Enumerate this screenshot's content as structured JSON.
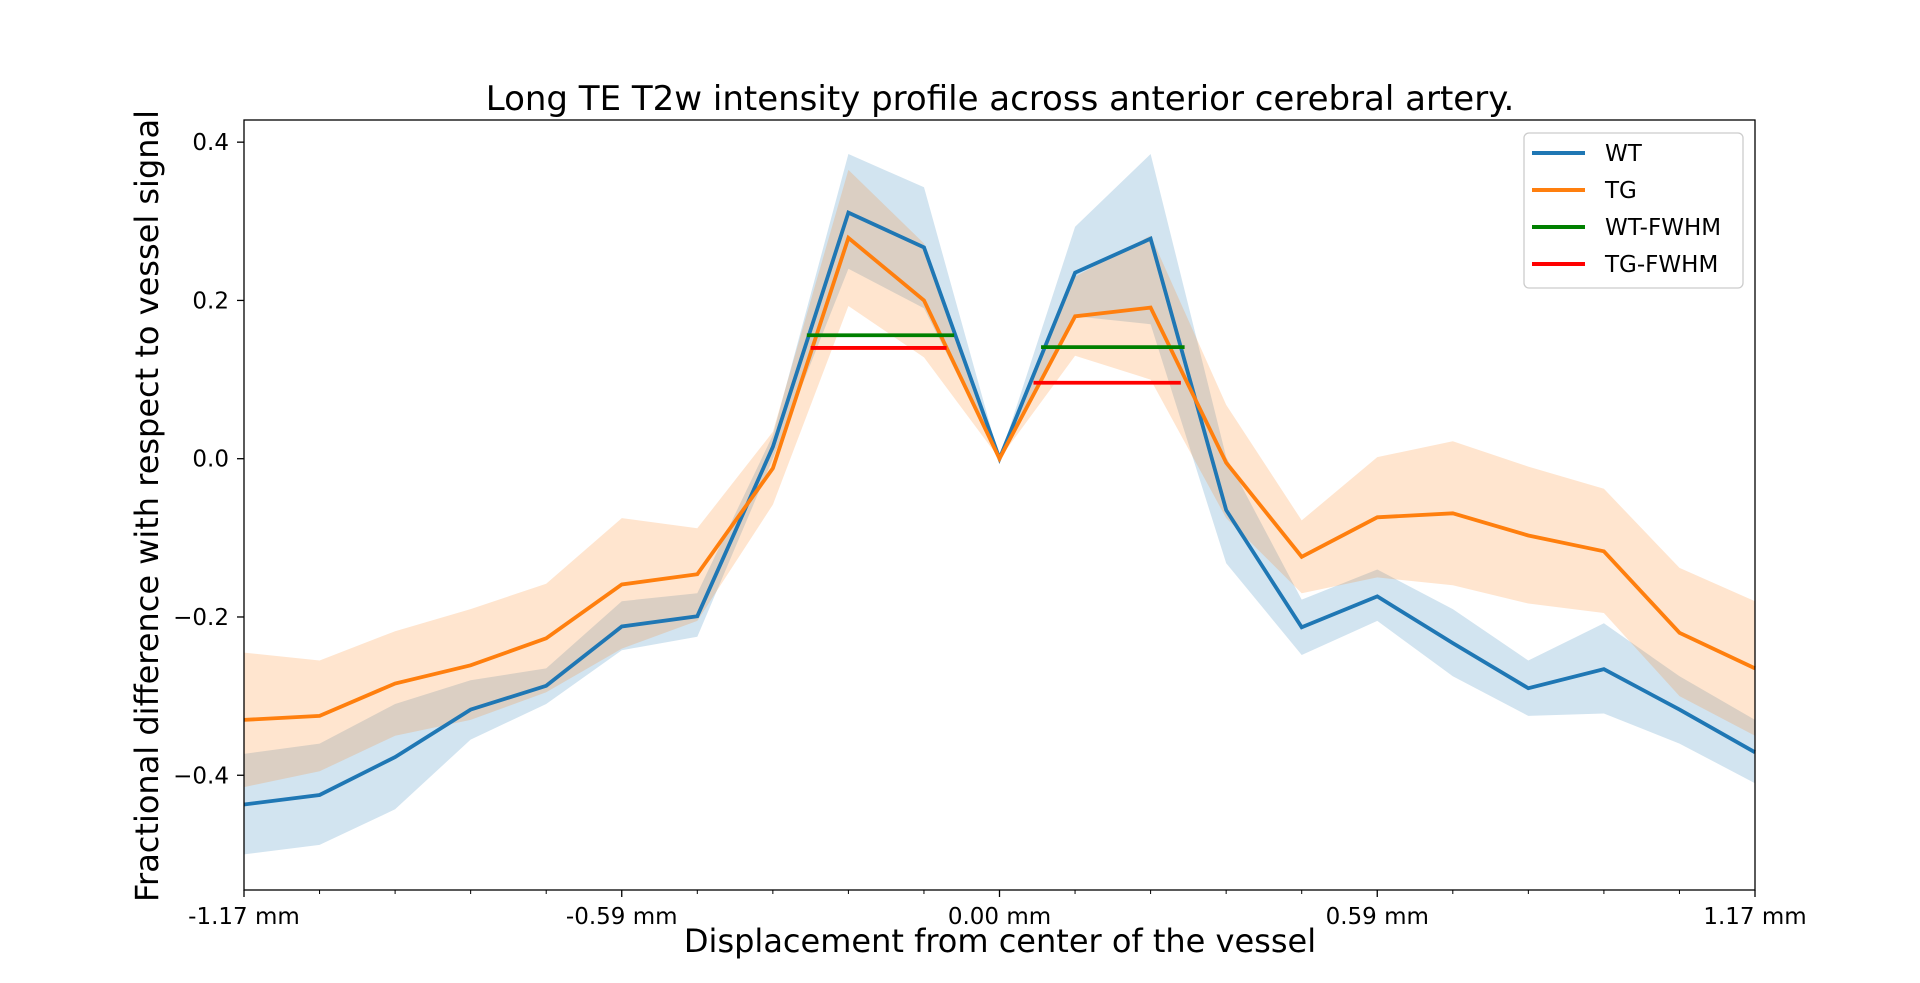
{
  "chart_data": {
    "type": "line",
    "title": "Long TE T2w intensity profile across anterior cerebral artery.",
    "xlabel": "Displacement from center of the vessel",
    "ylabel": "Fractional difference with respect to vessel signal",
    "x": [
      -20,
      -19,
      -18,
      -17,
      -16,
      -15,
      -14,
      -13,
      -12,
      -11,
      -10,
      -9,
      -8,
      -7,
      -6,
      -5,
      -4,
      -3,
      -2,
      -1,
      0
    ],
    "xlim": [
      -20,
      0
    ],
    "ylim": [
      -0.545,
      0.428
    ],
    "x_ticks": [
      {
        "value": -20,
        "label": "-1.17 mm"
      },
      {
        "value": -15,
        "label": "-0.59 mm"
      },
      {
        "value": -10,
        "label": "0.00 mm"
      },
      {
        "value": -5,
        "label": "0.59 mm"
      },
      {
        "value": 0,
        "label": "1.17 mm"
      }
    ],
    "x_minor_ticks": [
      -19,
      -18,
      -17,
      -16,
      -14,
      -13,
      -12,
      -11,
      -9,
      -8,
      -7,
      -6,
      -4,
      -3,
      -2,
      -1
    ],
    "y_ticks": [
      {
        "value": 0.4,
        "label": "0.4"
      },
      {
        "value": 0.2,
        "label": "0.2"
      },
      {
        "value": 0.0,
        "label": "0.0"
      },
      {
        "value": -0.2,
        "label": "−0.2"
      },
      {
        "value": -0.4,
        "label": "−0.4"
      }
    ],
    "grid": false,
    "legend_position": "top-right",
    "series": [
      {
        "name": "WT",
        "color": "#1f77b4",
        "values": [
          -0.437,
          -0.425,
          -0.377,
          -0.317,
          -0.287,
          -0.212,
          -0.199,
          0.015,
          0.311,
          0.267,
          0.0,
          0.235,
          0.278,
          -0.065,
          -0.213,
          -0.174,
          -0.233,
          -0.29,
          -0.266,
          -0.317,
          -0.371
        ],
        "lower": [
          -0.5,
          -0.488,
          -0.443,
          -0.355,
          -0.31,
          -0.242,
          -0.225,
          0.0,
          0.24,
          0.19,
          0.0,
          0.18,
          0.17,
          -0.132,
          -0.248,
          -0.205,
          -0.275,
          -0.325,
          -0.322,
          -0.36,
          -0.41
        ],
        "upper": [
          -0.373,
          -0.36,
          -0.31,
          -0.28,
          -0.265,
          -0.18,
          -0.17,
          0.03,
          0.385,
          0.343,
          0.0,
          0.293,
          0.385,
          0.002,
          -0.178,
          -0.14,
          -0.19,
          -0.255,
          -0.208,
          -0.275,
          -0.33
        ]
      },
      {
        "name": "TG",
        "color": "#ff7f0e",
        "values": [
          -0.33,
          -0.325,
          -0.284,
          -0.261,
          -0.227,
          -0.159,
          -0.146,
          -0.012,
          0.279,
          0.2,
          0.0,
          0.18,
          0.191,
          -0.005,
          -0.124,
          -0.074,
          -0.069,
          -0.097,
          -0.117,
          -0.22,
          -0.265
        ],
        "lower": [
          -0.415,
          -0.395,
          -0.35,
          -0.33,
          -0.295,
          -0.24,
          -0.205,
          -0.058,
          0.193,
          0.128,
          0.0,
          0.13,
          0.1,
          -0.075,
          -0.17,
          -0.15,
          -0.16,
          -0.183,
          -0.195,
          -0.3,
          -0.35
        ],
        "upper": [
          -0.245,
          -0.255,
          -0.218,
          -0.19,
          -0.158,
          -0.075,
          -0.088,
          0.034,
          0.365,
          0.272,
          0.0,
          0.23,
          0.282,
          0.068,
          -0.078,
          0.002,
          0.022,
          -0.01,
          -0.038,
          -0.138,
          -0.18
        ]
      }
    ],
    "fwhm_lines": [
      {
        "name": "WT-FWHM",
        "color": "#008000",
        "segments": [
          {
            "x1": -12.55,
            "x2": -10.6,
            "y": 0.156
          },
          {
            "x1": -9.45,
            "x2": -7.55,
            "y": 0.141
          }
        ]
      },
      {
        "name": "TG-FWHM",
        "color": "#ff0000",
        "segments": [
          {
            "x1": -12.5,
            "x2": -10.7,
            "y": 0.14
          },
          {
            "x1": -9.55,
            "x2": -7.6,
            "y": 0.096
          }
        ]
      }
    ],
    "legend": [
      "WT",
      "TG",
      "WT-FWHM",
      "TG-FWHM"
    ]
  }
}
